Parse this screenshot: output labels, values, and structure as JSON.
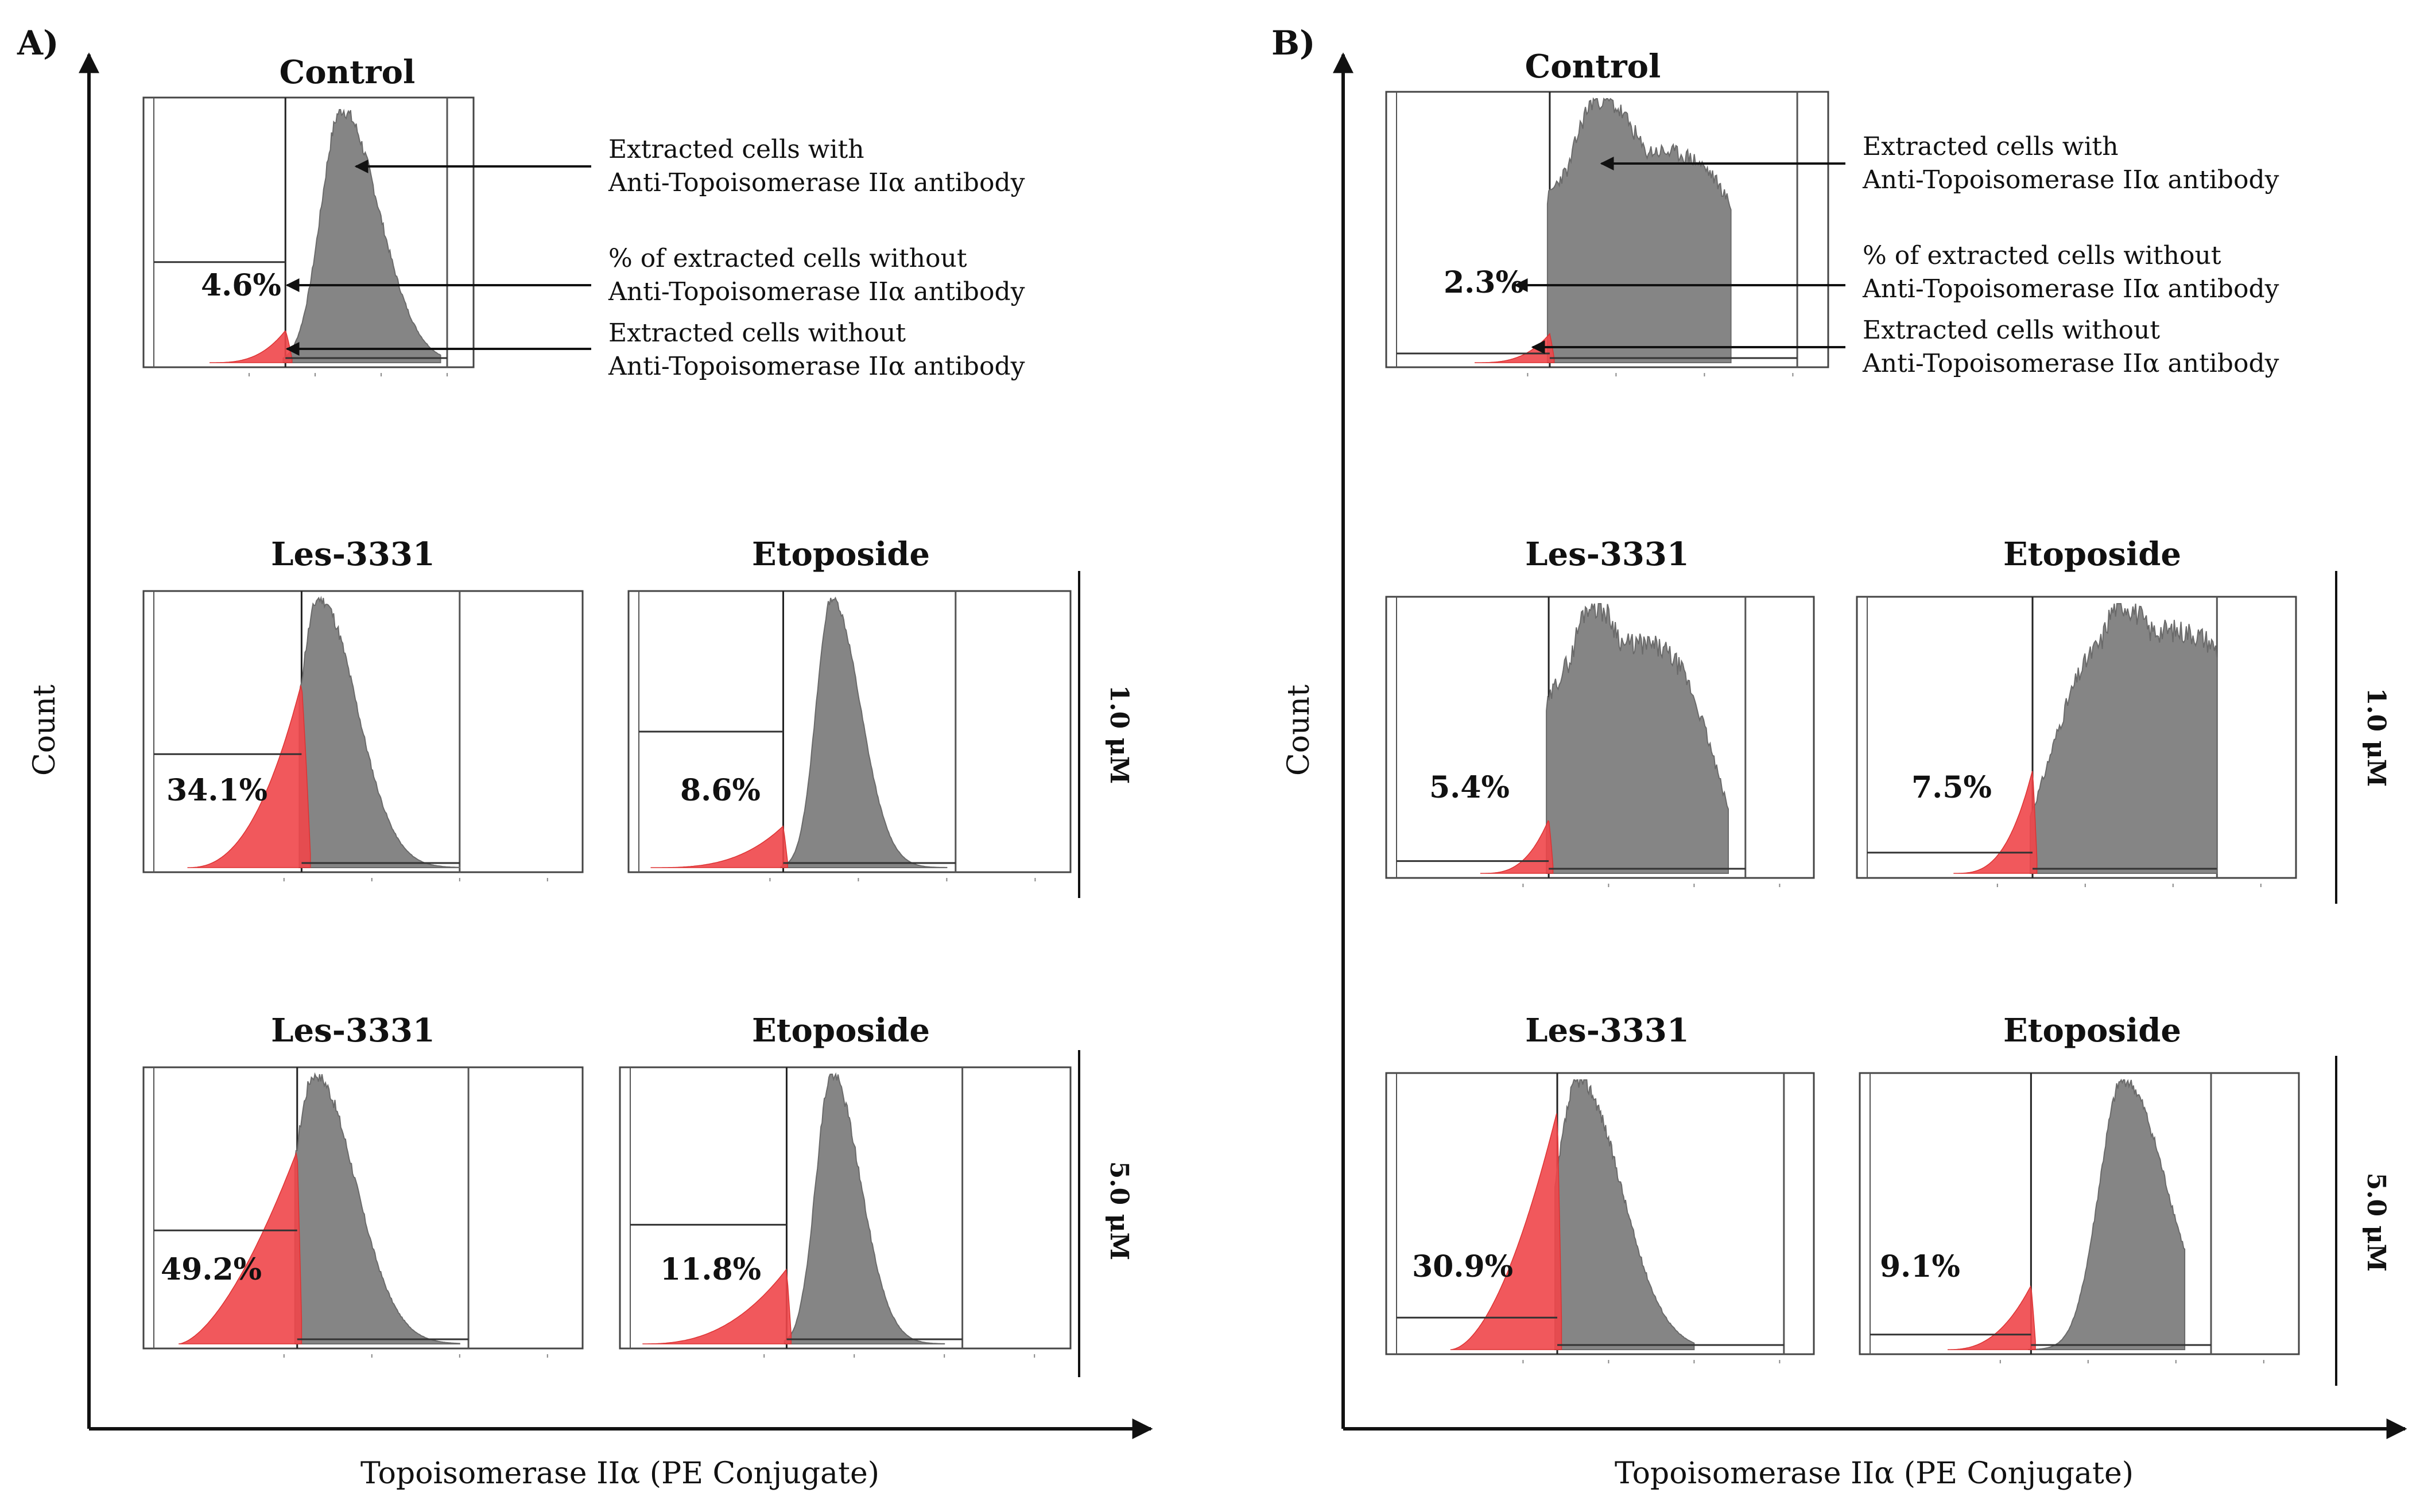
{
  "figure": {
    "panels": [
      {
        "id": "A",
        "label": "A)",
        "ylabel": "Count",
        "xlabel": "Topoisomerase IIα (PE Conjugate)",
        "control": {
          "title": "Control",
          "percent": "4.6%",
          "annotations": [
            [
              "Extracted cells with",
              "Anti-Topoisomerase IIα antibody"
            ],
            [
              "% of extracted cells without",
              "Anti-Topoisomerase IIα antibody"
            ],
            [
              "Extracted cells without",
              "Anti-Topoisomerase IIα antibody"
            ]
          ]
        },
        "rows": [
          {
            "concentration": "1.0 μM",
            "plots": [
              {
                "title": "Les-3331",
                "percent": "34.1%"
              },
              {
                "title": "Etoposide",
                "percent": "8.6%"
              }
            ]
          },
          {
            "concentration": "5.0 μM",
            "plots": [
              {
                "title": "Les-3331",
                "percent": "49.2%"
              },
              {
                "title": "Etoposide",
                "percent": "11.8%"
              }
            ]
          }
        ]
      },
      {
        "id": "B",
        "label": "B)",
        "ylabel": "Count",
        "xlabel": "Topoisomerase IIα (PE Conjugate)",
        "control": {
          "title": "Control",
          "percent": "2.3%",
          "annotations": [
            [
              "Extracted cells with",
              "Anti-Topoisomerase IIα antibody"
            ],
            [
              "% of extracted cells without",
              "Anti-Topoisomerase IIα antibody"
            ],
            [
              "Extracted cells without",
              "Anti-Topoisomerase IIα antibody"
            ]
          ]
        },
        "rows": [
          {
            "concentration": "1.0 μM",
            "plots": [
              {
                "title": "Les-3331",
                "percent": "5.4%"
              },
              {
                "title": "Etoposide",
                "percent": "7.5%"
              }
            ]
          },
          {
            "concentration": "5.0 μM",
            "plots": [
              {
                "title": "Les-3331",
                "percent": "30.9%"
              },
              {
                "title": "Etoposide",
                "percent": "9.1%"
              }
            ]
          }
        ]
      }
    ],
    "colors": {
      "negative": "#f0464a",
      "positive": "#858585",
      "axis": "#111111",
      "gate": "#333333"
    }
  },
  "chart_data": [
    {
      "type": "area",
      "panel": "A",
      "title": "Control",
      "gated_percent": 4.6
    },
    {
      "type": "area",
      "panel": "A",
      "title": "Les-3331",
      "concentration": "1.0 μM",
      "gated_percent": 34.1
    },
    {
      "type": "area",
      "panel": "A",
      "title": "Etoposide",
      "concentration": "1.0 μM",
      "gated_percent": 8.6
    },
    {
      "type": "area",
      "panel": "A",
      "title": "Les-3331",
      "concentration": "5.0 μM",
      "gated_percent": 49.2
    },
    {
      "type": "area",
      "panel": "A",
      "title": "Etoposide",
      "concentration": "5.0 μM",
      "gated_percent": 11.8
    },
    {
      "type": "area",
      "panel": "B",
      "title": "Control",
      "gated_percent": 2.3
    },
    {
      "type": "area",
      "panel": "B",
      "title": "Les-3331",
      "concentration": "1.0 μM",
      "gated_percent": 5.4
    },
    {
      "type": "area",
      "panel": "B",
      "title": "Etoposide",
      "concentration": "1.0 μM",
      "gated_percent": 7.5
    },
    {
      "type": "area",
      "panel": "B",
      "title": "Les-3331",
      "concentration": "5.0 μM",
      "gated_percent": 30.9
    },
    {
      "type": "area",
      "panel": "B",
      "title": "Etoposide",
      "concentration": "5.0 μM",
      "gated_percent": 9.1
    }
  ]
}
